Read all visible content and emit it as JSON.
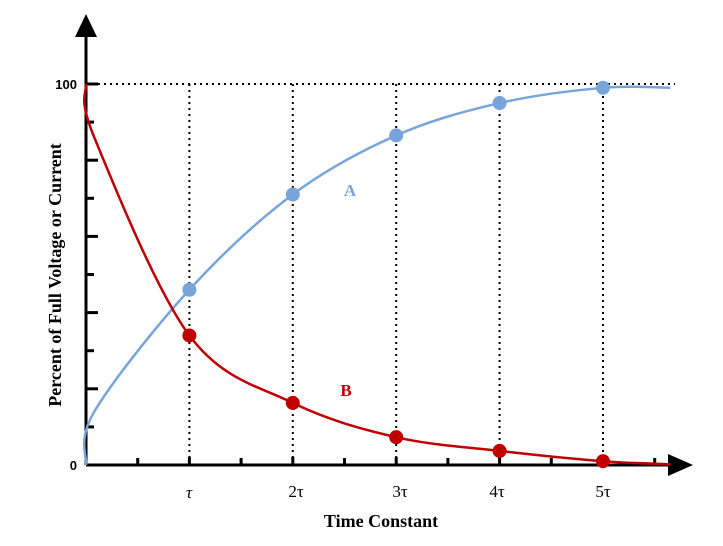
{
  "chart_data": {
    "type": "line",
    "title": "",
    "xlabel": "Time Constant",
    "ylabel": "Percent of Full Voltage or Current",
    "ylim": [
      0,
      100
    ],
    "xlim": [
      0,
      5.85
    ],
    "y_tick_labels": [
      "0",
      "100"
    ],
    "x_tick_labels": [
      "τ",
      "2τ",
      "3τ",
      "4τ",
      "5τ"
    ],
    "x": [
      1,
      2,
      3,
      4,
      5
    ],
    "grid": "dotted vertical lines at each time constant and dotted horizontal line at 100",
    "series": [
      {
        "name": "A",
        "color": "#78a4dc",
        "values": [
          46,
          71,
          86.5,
          95,
          99
        ]
      },
      {
        "name": "B",
        "color": "#c00000",
        "values": [
          34,
          16.3,
          7.3,
          3.7,
          1
        ]
      }
    ]
  }
}
